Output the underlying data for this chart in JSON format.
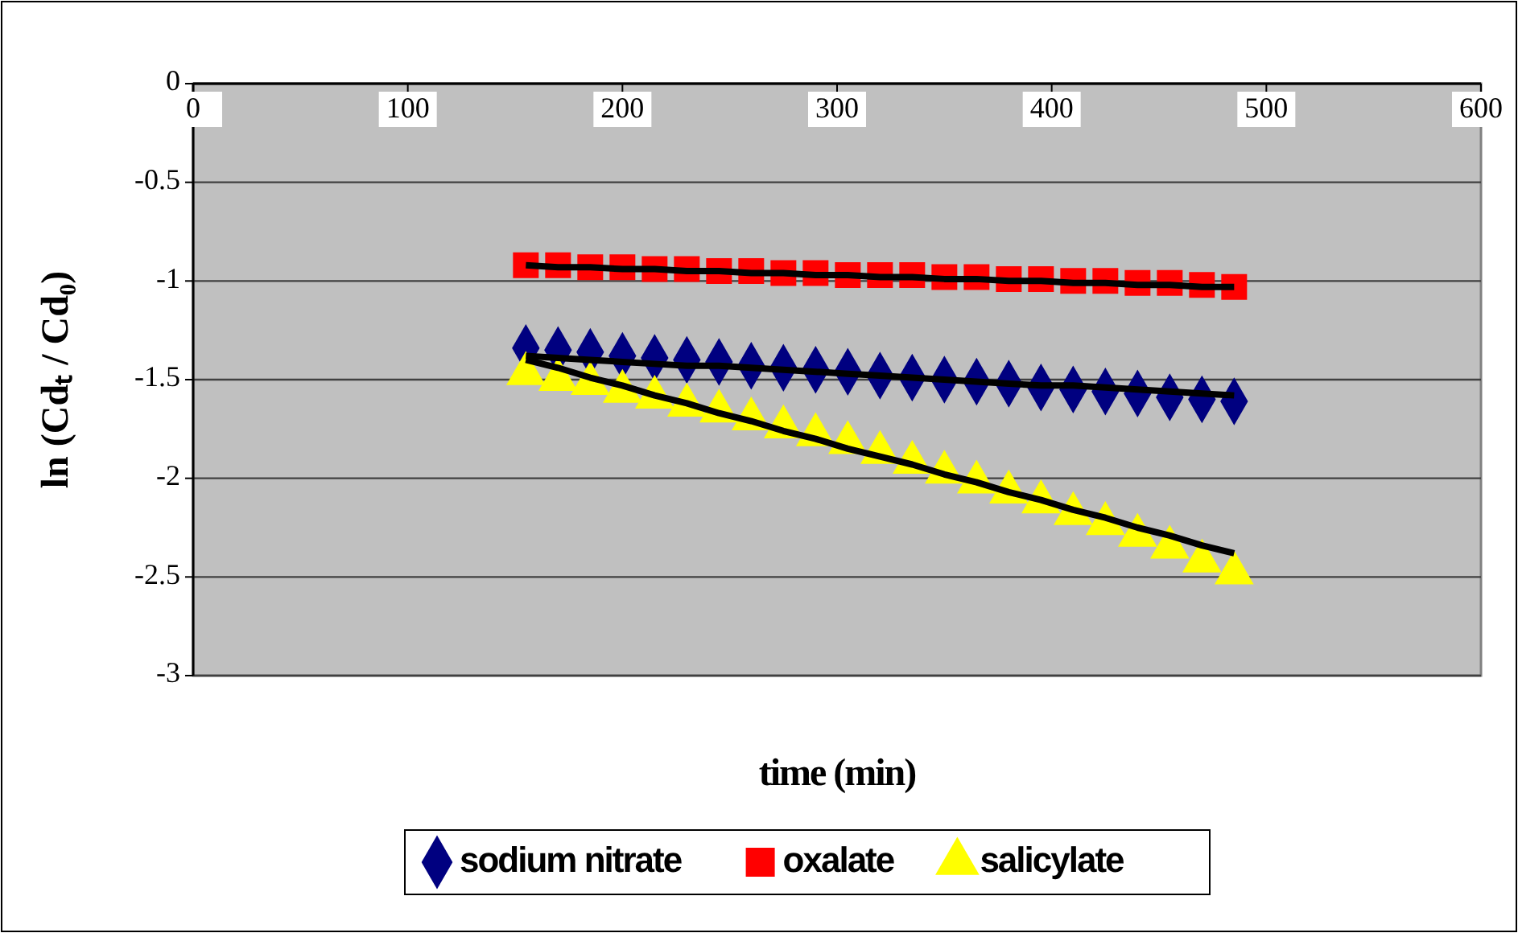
{
  "chart_data": {
    "type": "scatter",
    "xlabel": "time (min)",
    "ylabel": "ln (Cdₜ / Cd₀)",
    "x": [
      155,
      170,
      185,
      200,
      215,
      230,
      245,
      260,
      275,
      290,
      305,
      320,
      335,
      350,
      365,
      380,
      395,
      410,
      425,
      440,
      455,
      470,
      485
    ],
    "xlim": [
      0,
      600
    ],
    "xticks": [
      0,
      100,
      200,
      300,
      400,
      500,
      600
    ],
    "ylim": [
      -3,
      0
    ],
    "yticks": [
      0,
      -0.5,
      -1,
      -1.5,
      -2,
      -2.5,
      -3
    ],
    "grid": "y",
    "legend": "bottom",
    "series": [
      {
        "name": "sodium nitrate",
        "color": "#000080",
        "marker": "diamond",
        "values": [
          -1.34,
          -1.35,
          -1.36,
          -1.38,
          -1.39,
          -1.4,
          -1.41,
          -1.43,
          -1.44,
          -1.45,
          -1.46,
          -1.48,
          -1.49,
          -1.5,
          -1.51,
          -1.52,
          -1.54,
          -1.55,
          -1.56,
          -1.57,
          -1.59,
          -1.6,
          -1.61
        ]
      },
      {
        "name": "oxalate",
        "color": "#ff0000",
        "marker": "square",
        "values": [
          -0.92,
          -0.92,
          -0.93,
          -0.93,
          -0.94,
          -0.94,
          -0.95,
          -0.95,
          -0.96,
          -0.96,
          -0.97,
          -0.97,
          -0.97,
          -0.98,
          -0.98,
          -0.99,
          -0.99,
          -1.0,
          -1.0,
          -1.01,
          -1.01,
          -1.02,
          -1.03
        ]
      },
      {
        "name": "salicylate",
        "color": "#ffff00",
        "marker": "triangle",
        "values": [
          -1.47,
          -1.5,
          -1.52,
          -1.56,
          -1.59,
          -1.63,
          -1.66,
          -1.7,
          -1.74,
          -1.78,
          -1.82,
          -1.87,
          -1.92,
          -1.97,
          -2.02,
          -2.07,
          -2.12,
          -2.18,
          -2.23,
          -2.29,
          -2.35,
          -2.42,
          -2.48
        ]
      },
      {
        "type": "line",
        "color": "#000000",
        "marker": "none",
        "values": [
          -1.38,
          -1.39,
          -1.4,
          -1.41,
          -1.42,
          -1.43,
          -1.43,
          -1.44,
          -1.45,
          -1.46,
          -1.47,
          -1.48,
          -1.49,
          -1.5,
          -1.51,
          -1.52,
          -1.53,
          -1.53,
          -1.54,
          -1.55,
          -1.56,
          -1.57,
          -1.58
        ]
      },
      {
        "type": "line",
        "color": "#000000",
        "marker": "none",
        "values": [
          -0.92,
          -0.93,
          -0.93,
          -0.94,
          -0.94,
          -0.95,
          -0.95,
          -0.96,
          -0.96,
          -0.97,
          -0.97,
          -0.98,
          -0.98,
          -0.99,
          -0.99,
          -1.0,
          -1.0,
          -1.01,
          -1.01,
          -1.02,
          -1.02,
          -1.03,
          -1.03
        ]
      },
      {
        "type": "line",
        "color": "#000000",
        "marker": "none",
        "values": [
          -1.4,
          -1.44,
          -1.49,
          -1.53,
          -1.58,
          -1.62,
          -1.67,
          -1.71,
          -1.76,
          -1.8,
          -1.85,
          -1.89,
          -1.93,
          -1.98,
          -2.02,
          -2.07,
          -2.11,
          -2.16,
          -2.2,
          -2.25,
          -2.29,
          -2.34,
          -2.38
        ]
      }
    ]
  }
}
